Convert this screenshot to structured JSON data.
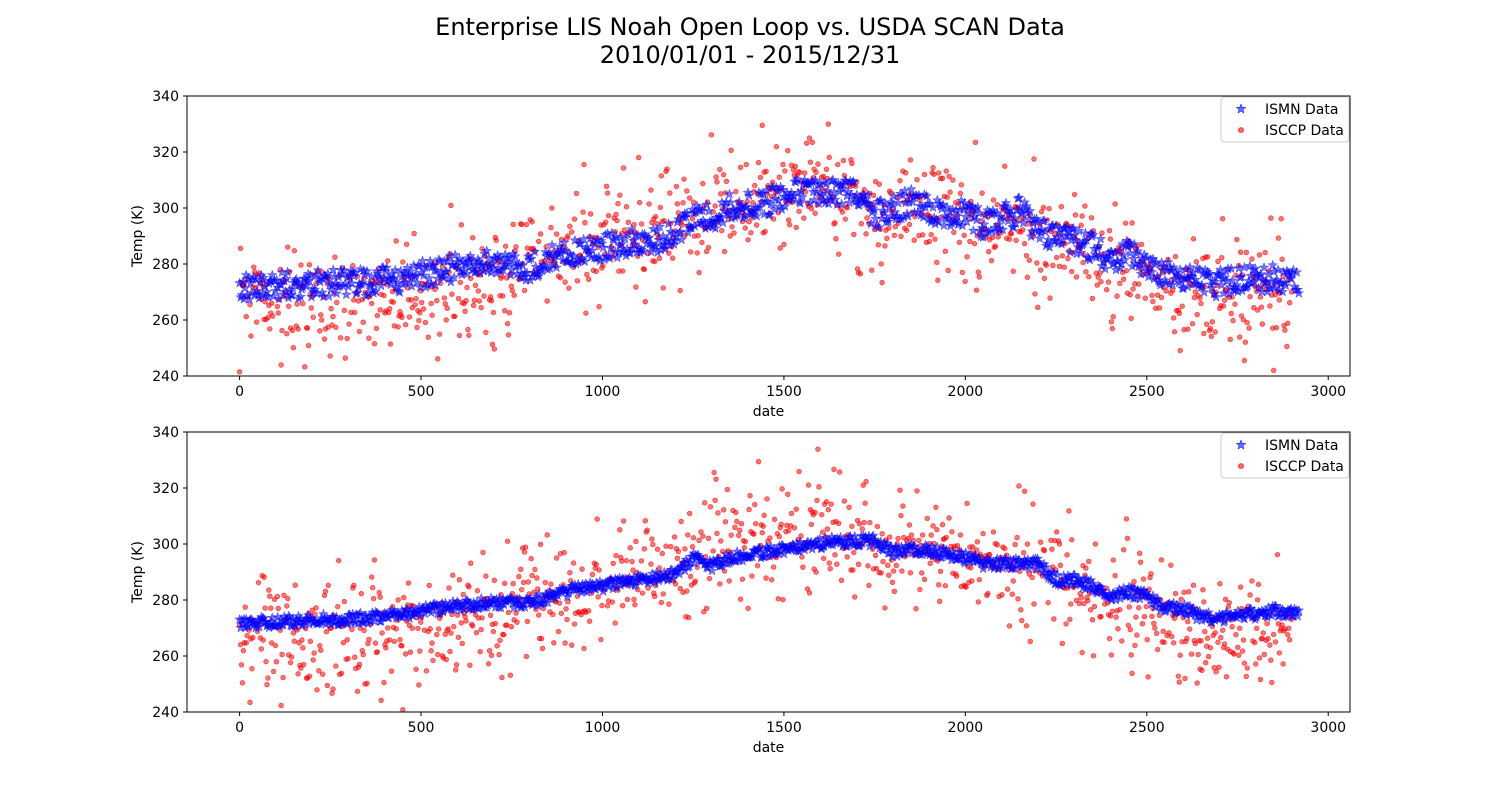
{
  "figure": {
    "title_line1": "Enterprise LIS Noah Open Loop vs. USDA SCAN Data",
    "title_line2": "2010/01/01 - 2015/12/31"
  },
  "colors": {
    "ismn": "#0000ff",
    "isccp": "#ff0000",
    "axes": "#000000"
  },
  "chart_data": [
    {
      "type": "scatter",
      "xlabel": "date",
      "ylabel": "Temp (K)",
      "xlim": [
        -145,
        3060
      ],
      "ylim": [
        240,
        340
      ],
      "xticks": [
        0,
        500,
        1000,
        1500,
        2000,
        2500,
        3000
      ],
      "yticks": [
        240,
        260,
        280,
        300,
        320,
        340
      ],
      "grid": false,
      "legend_position": "top-right",
      "series": [
        {
          "name": "ISMN Data",
          "marker": "star",
          "color": "#0000ff",
          "x": [
            0,
            100,
            200,
            300,
            400,
            500,
            600,
            700,
            800,
            900,
            1000,
            1100,
            1200,
            1250,
            1300,
            1350,
            1400,
            1450,
            1500,
            1550,
            1600,
            1650,
            1700,
            1750,
            1800,
            1850,
            1900,
            1950,
            2000,
            2050,
            2100,
            2150,
            2200,
            2250,
            2300,
            2350,
            2400,
            2450,
            2500,
            2550,
            2600,
            2650,
            2700,
            2750,
            2800,
            2850,
            2900,
            2920
          ],
          "y": [
            271,
            272,
            273,
            273,
            274,
            276,
            279,
            280,
            279,
            284,
            286,
            288,
            290,
            298,
            297,
            300,
            301,
            302,
            304,
            306,
            306,
            306,
            305,
            297,
            300,
            302,
            300,
            297,
            298,
            294,
            296,
            299,
            292,
            289,
            289,
            286,
            282,
            284,
            280,
            276,
            276,
            273,
            273,
            275,
            274,
            275,
            274,
            274
          ],
          "spread": 5
        },
        {
          "name": "ISCCP Data",
          "marker": "circle",
          "color": "#ff0000",
          "x": [
            0,
            100,
            200,
            300,
            400,
            500,
            600,
            700,
            800,
            900,
            1000,
            1100,
            1200,
            1250,
            1300,
            1350,
            1400,
            1450,
            1500,
            1550,
            1600,
            1650,
            1700,
            1750,
            1800,
            1850,
            1900,
            1950,
            2000,
            2050,
            2100,
            2150,
            2200,
            2250,
            2300,
            2350,
            2400,
            2450,
            2500,
            2550,
            2600,
            2650,
            2700,
            2750,
            2800,
            2850,
            2900
          ],
          "y": [
            265,
            264,
            262,
            262,
            266,
            264,
            270,
            272,
            278,
            283,
            285,
            287,
            292,
            293,
            296,
            298,
            300,
            301,
            303,
            304,
            304,
            302,
            300,
            295,
            296,
            298,
            296,
            293,
            293,
            290,
            291,
            292,
            285,
            283,
            285,
            281,
            278,
            278,
            272,
            270,
            268,
            264,
            264,
            268,
            266,
            266,
            266
          ],
          "spread": 22
        }
      ]
    },
    {
      "type": "scatter",
      "xlabel": "date",
      "ylabel": "Temp (K)",
      "xlim": [
        -145,
        3060
      ],
      "ylim": [
        240,
        340
      ],
      "xticks": [
        0,
        500,
        1000,
        1500,
        2000,
        2500,
        3000
      ],
      "yticks": [
        240,
        260,
        280,
        300,
        320,
        340
      ],
      "grid": false,
      "legend_position": "top-right",
      "series": [
        {
          "name": "ISMN Data",
          "marker": "star",
          "color": "#0000ff",
          "x": [
            0,
            100,
            200,
            300,
            400,
            500,
            600,
            700,
            800,
            900,
            1000,
            1100,
            1200,
            1250,
            1300,
            1350,
            1400,
            1450,
            1500,
            1550,
            1600,
            1650,
            1700,
            1750,
            1800,
            1850,
            1900,
            1950,
            2000,
            2050,
            2100,
            2150,
            2200,
            2250,
            2300,
            2350,
            2400,
            2450,
            2500,
            2550,
            2600,
            2650,
            2700,
            2750,
            2800,
            2850,
            2900,
            2920
          ],
          "y": [
            272,
            272,
            273,
            273,
            274,
            276,
            278,
            279,
            279,
            283,
            285,
            287,
            289,
            295,
            292,
            295,
            296,
            297,
            298,
            299,
            300,
            301,
            301,
            301,
            297,
            298,
            298,
            296,
            295,
            293,
            293,
            293,
            293,
            287,
            287,
            285,
            281,
            283,
            281,
            277,
            277,
            274,
            273,
            275,
            275,
            276,
            275,
            275
          ],
          "spread": 2
        },
        {
          "name": "ISCCP Data",
          "marker": "circle",
          "color": "#ff0000",
          "x": [
            0,
            100,
            200,
            300,
            400,
            500,
            600,
            700,
            800,
            900,
            1000,
            1100,
            1200,
            1250,
            1300,
            1350,
            1400,
            1450,
            1500,
            1550,
            1600,
            1650,
            1700,
            1750,
            1800,
            1850,
            1900,
            1950,
            2000,
            2050,
            2100,
            2150,
            2200,
            2250,
            2300,
            2350,
            2400,
            2450,
            2500,
            2550,
            2600,
            2650,
            2700,
            2750,
            2800,
            2850,
            2900
          ],
          "y": [
            265,
            264,
            262,
            262,
            266,
            264,
            270,
            272,
            278,
            283,
            285,
            287,
            292,
            293,
            296,
            298,
            300,
            301,
            303,
            304,
            304,
            302,
            300,
            295,
            296,
            298,
            296,
            293,
            293,
            290,
            291,
            292,
            285,
            283,
            285,
            281,
            278,
            278,
            272,
            270,
            268,
            264,
            264,
            268,
            266,
            266,
            266
          ],
          "spread": 22
        }
      ]
    }
  ]
}
